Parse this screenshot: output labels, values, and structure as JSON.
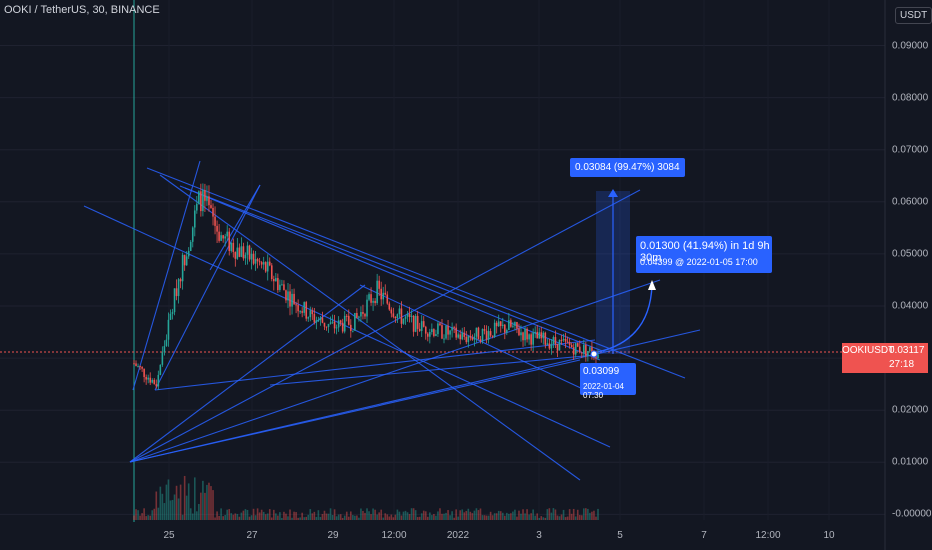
{
  "header": {
    "symbol_title": "OOKI / TetherUS, 30, BINANCE",
    "currency": "USDT"
  },
  "price_badge": {
    "symbol": "OOKIUSDT",
    "price": "0.03117",
    "countdown": "27:18"
  },
  "annotations": {
    "range_label": "0.03084 (99.47%) 3084",
    "target_line1": "0.01300 (41.94%) in 1d 9h 30m",
    "target_line2": "0.04399 @ 2022-01-05  17:00",
    "low_line1": "0.03099",
    "low_line2": "2022-01-04 07:30"
  },
  "colors": {
    "background": "#131722",
    "up": "#26a69a",
    "down": "#ef5350",
    "drawing": "#2962ff",
    "price_line": "#ef5350"
  },
  "chart_data": {
    "type": "candlestick",
    "title": "OOKI / TetherUS, 30, BINANCE",
    "ylabel": "USDT",
    "ylim": [
      -0.001,
      0.098
    ],
    "y_ticks": [
      "0.09000",
      "0.08000",
      "0.07000",
      "0.06000",
      "0.05000",
      "0.04000",
      "0.03000",
      "0.02000",
      "0.01000",
      "-0.00000"
    ],
    "x_ticks": [
      "25",
      "27",
      "29",
      "12:00",
      "2022",
      "3",
      "5",
      "7",
      "12:00",
      "10"
    ],
    "current_price": 0.03117,
    "series": [
      {
        "x": "Dec 24",
        "close": 0.029
      },
      {
        "x": "Dec 24 12:00",
        "close": 0.025
      },
      {
        "x": "Dec 25",
        "close": 0.045
      },
      {
        "x": "Dec 25 12:00",
        "close": 0.061
      },
      {
        "x": "Dec 26",
        "close": 0.053
      },
      {
        "x": "Dec 26 12:00",
        "close": 0.05
      },
      {
        "x": "Dec 27",
        "close": 0.047
      },
      {
        "x": "Dec 27 12:00",
        "close": 0.042
      },
      {
        "x": "Dec 28",
        "close": 0.038
      },
      {
        "x": "Dec 28 12:00",
        "close": 0.036
      },
      {
        "x": "Dec 29",
        "close": 0.037
      },
      {
        "x": "Dec 29 12:00",
        "close": 0.043
      },
      {
        "x": "Dec 30",
        "close": 0.038
      },
      {
        "x": "Dec 30 12:00",
        "close": 0.036
      },
      {
        "x": "Dec 31",
        "close": 0.035
      },
      {
        "x": "Jan 1",
        "close": 0.034
      },
      {
        "x": "Jan 1 12:00",
        "close": 0.035
      },
      {
        "x": "Jan 2",
        "close": 0.036
      },
      {
        "x": "Jan 2 12:00",
        "close": 0.034
      },
      {
        "x": "Jan 3",
        "close": 0.033
      },
      {
        "x": "Jan 3 12:00",
        "close": 0.032
      },
      {
        "x": "Jan 4",
        "close": 0.031
      }
    ]
  }
}
